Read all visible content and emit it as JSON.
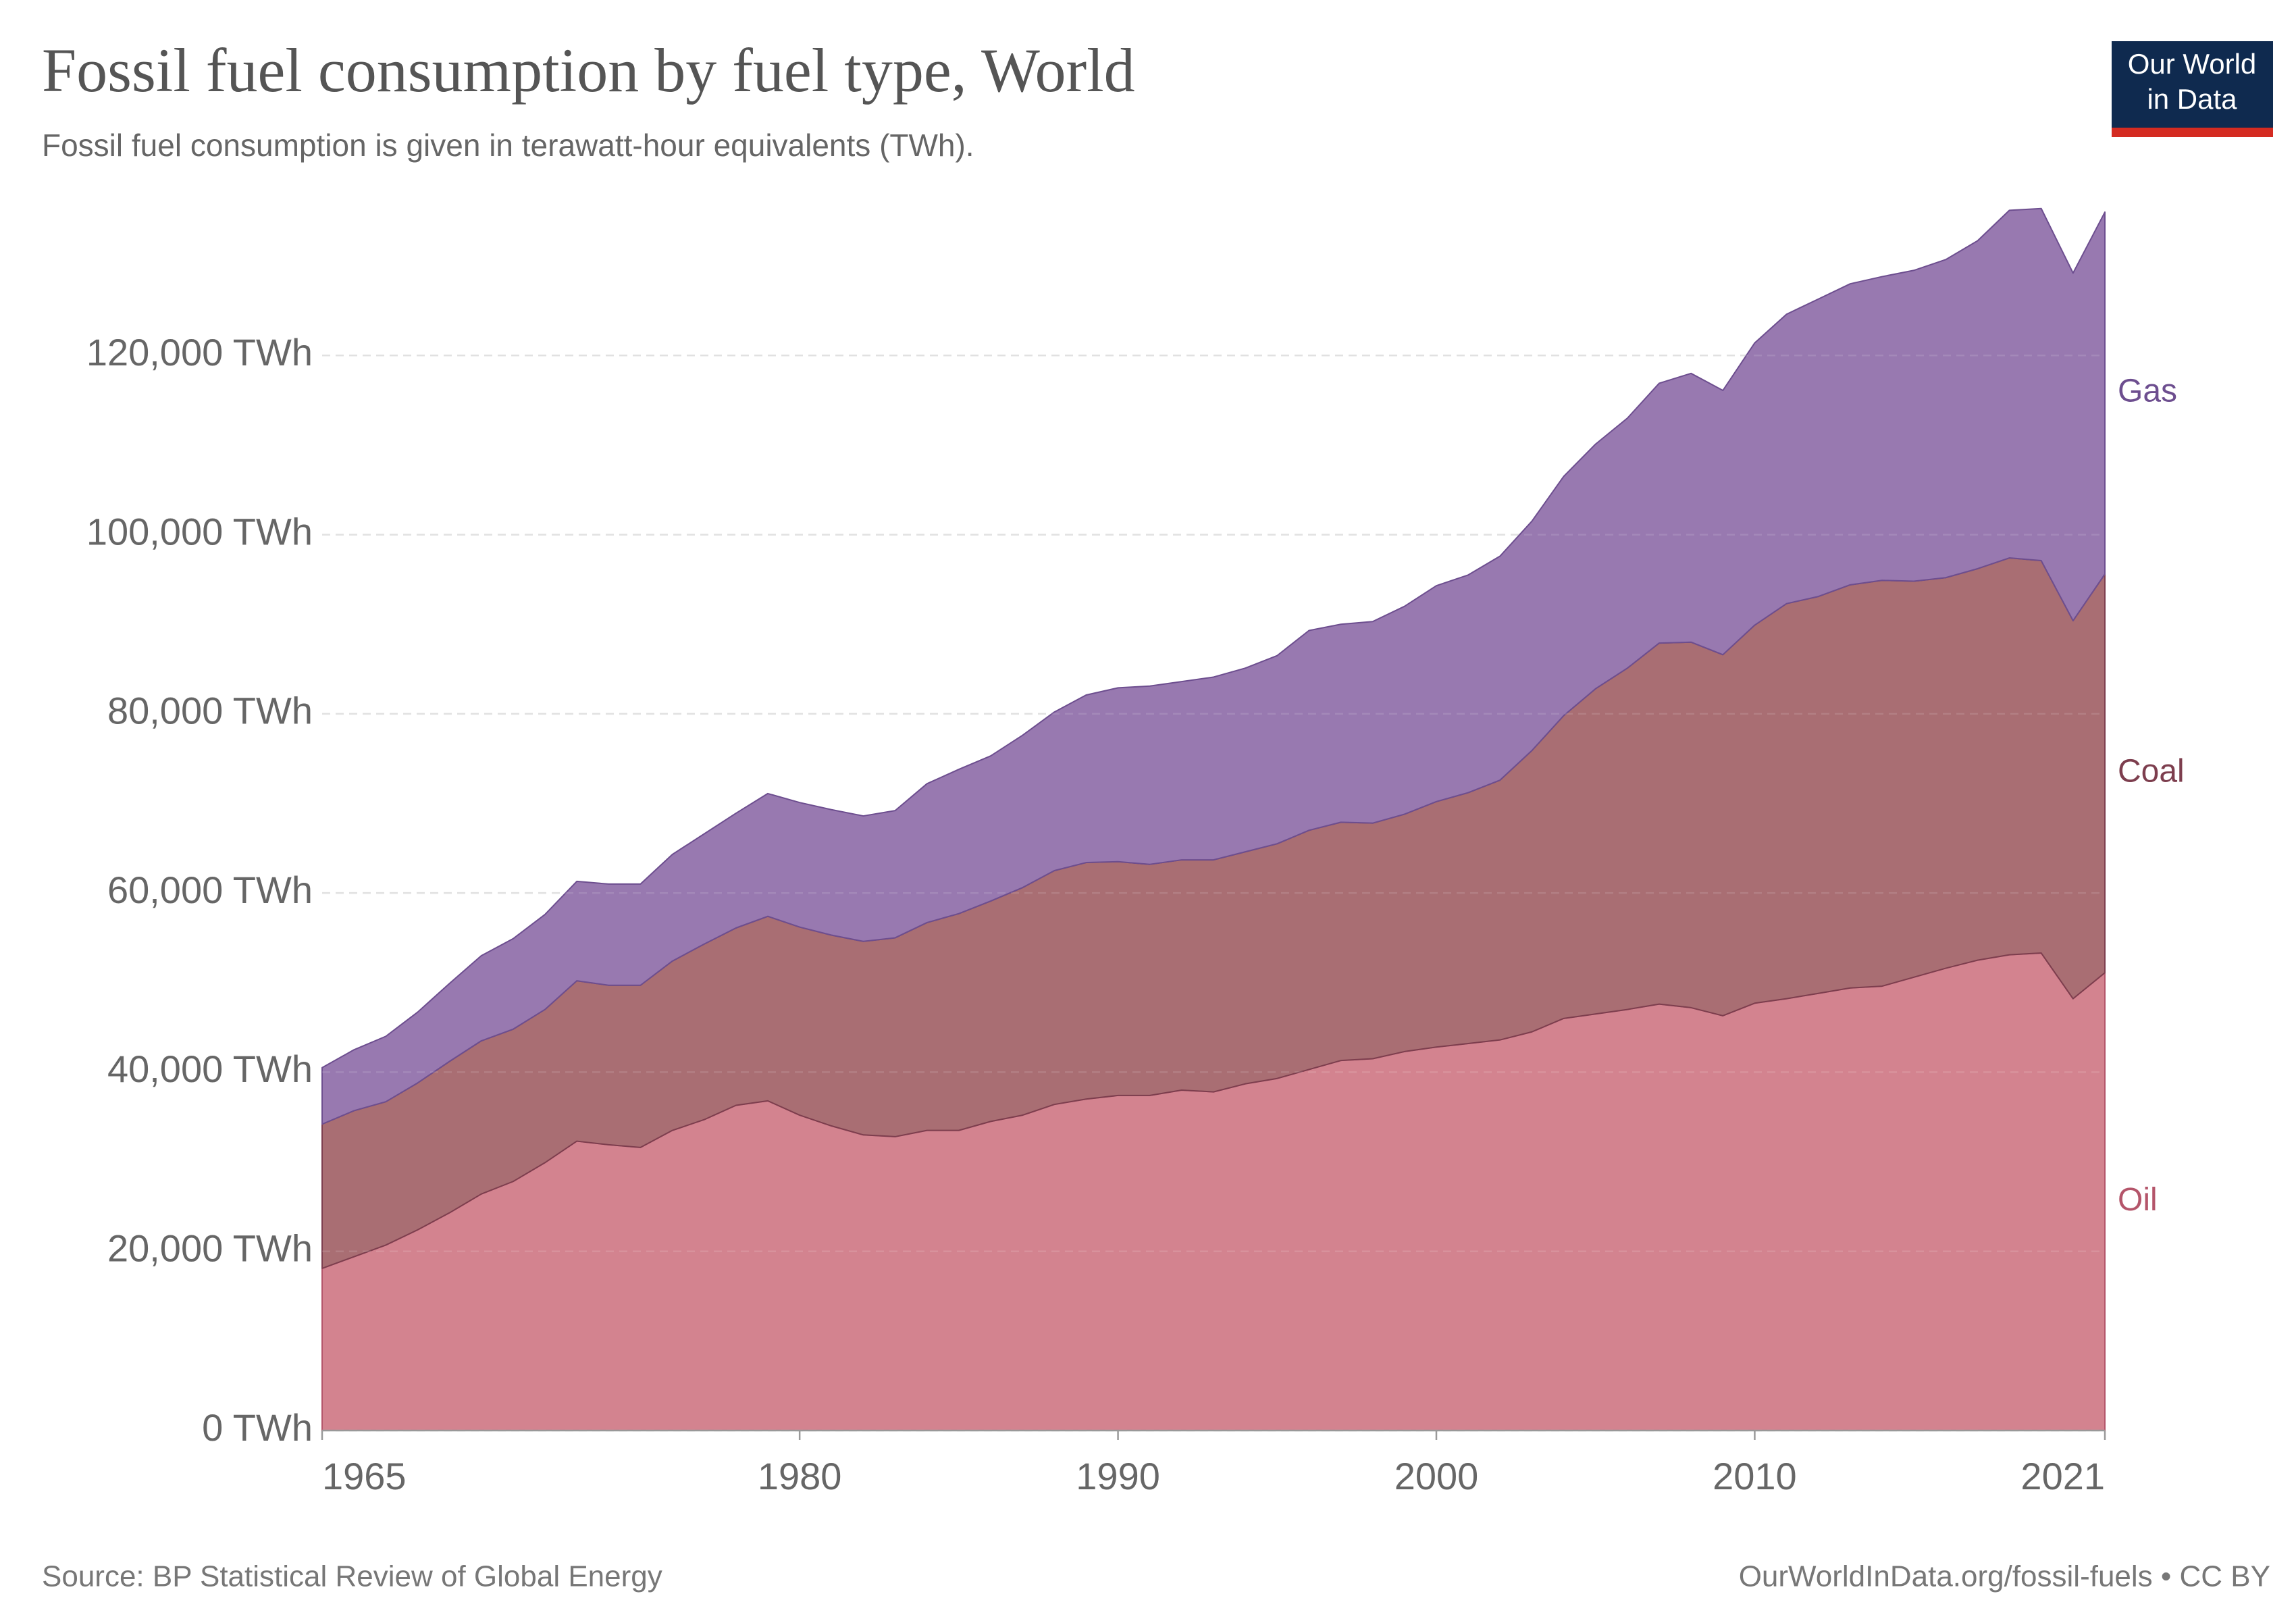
{
  "chart_data": {
    "type": "stacked-area",
    "title": "Fossil fuel consumption by fuel type, World",
    "subtitle": "Fossil fuel consumption is given in terawatt-hour equivalents (TWh).",
    "source": "Source: BP Statistical Review of Global Energy",
    "credit": "OurWorldInData.org/fossil-fuels • CC BY",
    "x": [
      1965,
      1966,
      1967,
      1968,
      1969,
      1970,
      1971,
      1972,
      1973,
      1974,
      1975,
      1976,
      1977,
      1978,
      1979,
      1980,
      1981,
      1982,
      1983,
      1984,
      1985,
      1986,
      1987,
      1988,
      1989,
      1990,
      1991,
      1992,
      1993,
      1994,
      1995,
      1996,
      1997,
      1998,
      1999,
      2000,
      2001,
      2002,
      2003,
      2004,
      2005,
      2006,
      2007,
      2008,
      2009,
      2010,
      2011,
      2012,
      2013,
      2014,
      2015,
      2016,
      2017,
      2018,
      2019,
      2020,
      2021
    ],
    "series": [
      {
        "name": "Oil",
        "color": "#d3838f",
        "label_color": "#b4556a",
        "values": [
          18100,
          19400,
          20700,
          22400,
          24300,
          26400,
          27800,
          29900,
          32300,
          31900,
          31600,
          33500,
          34700,
          36300,
          36800,
          35200,
          34000,
          33000,
          32800,
          33500,
          33500,
          34500,
          35200,
          36400,
          37000,
          37400,
          37400,
          38000,
          37800,
          38700,
          39300,
          40300,
          41300,
          41500,
          42300,
          42800,
          43200,
          43600,
          44500,
          46000,
          46500,
          47000,
          47600,
          47200,
          46300,
          47700,
          48200,
          48800,
          49400,
          49600,
          50600,
          51600,
          52500,
          53100,
          53300,
          48200,
          51100
        ]
      },
      {
        "name": "Coal",
        "color": "#a96e73",
        "label_color": "#7d3e4e",
        "values": [
          16100,
          16300,
          16000,
          16400,
          16900,
          17100,
          17000,
          17100,
          17900,
          17800,
          18100,
          18900,
          19600,
          19800,
          20600,
          21000,
          21300,
          21600,
          22200,
          23200,
          24200,
          24600,
          25400,
          26100,
          26400,
          26100,
          25800,
          25700,
          25900,
          25900,
          26200,
          26700,
          26600,
          26300,
          26500,
          27400,
          28000,
          29000,
          31400,
          33800,
          36300,
          38100,
          40300,
          40800,
          40300,
          42200,
          44100,
          44300,
          45000,
          45300,
          44200,
          43600,
          43700,
          44300,
          43800,
          42200,
          44500
        ]
      },
      {
        "name": "Gas",
        "color": "#9879b0",
        "label_color": "#6d4e8f",
        "values": [
          6300,
          6800,
          7300,
          7900,
          8700,
          9500,
          10100,
          10600,
          11100,
          11300,
          11300,
          11900,
          12300,
          12800,
          13700,
          13900,
          14000,
          14000,
          14200,
          15500,
          16100,
          16200,
          17000,
          17700,
          18700,
          19400,
          19900,
          19900,
          20400,
          20500,
          21000,
          22300,
          22100,
          22500,
          23200,
          24100,
          24300,
          25000,
          25600,
          26700,
          27300,
          27900,
          29000,
          30000,
          29500,
          31500,
          32300,
          33200,
          33600,
          33900,
          34700,
          35500,
          36600,
          38800,
          39300,
          38800,
          40400
        ]
      }
    ],
    "xlim": [
      1965,
      2021
    ],
    "xticks": [
      1965,
      1980,
      1990,
      2000,
      2010,
      2021
    ],
    "ylim": [
      0,
      140000
    ],
    "yticks": [
      {
        "value": 0,
        "label": "0 TWh"
      },
      {
        "value": 20000,
        "label": "20,000 TWh"
      },
      {
        "value": 40000,
        "label": "40,000 TWh"
      },
      {
        "value": 60000,
        "label": "60,000 TWh"
      },
      {
        "value": 80000,
        "label": "80,000 TWh"
      },
      {
        "value": 100000,
        "label": "100,000 TWh"
      },
      {
        "value": 120000,
        "label": "120,000 TWh"
      }
    ],
    "grid": true
  },
  "branding": [
    "Our World",
    "in Data"
  ]
}
